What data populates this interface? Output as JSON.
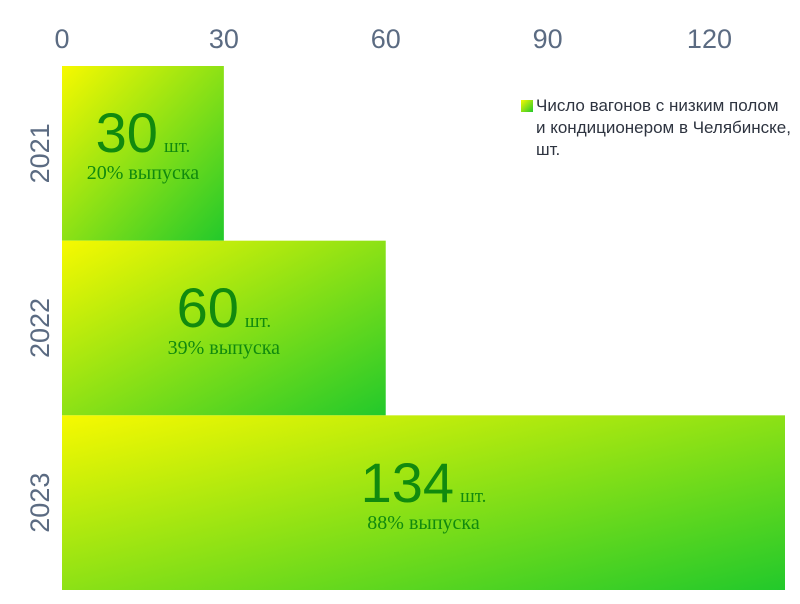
{
  "chart_data": {
    "type": "bar",
    "orientation": "horizontal",
    "categories": [
      "2021",
      "2022",
      "2023"
    ],
    "series": [
      {
        "name": "Число вагонов с низким полом и кондиционером в Челябинске, шт.",
        "values": [
          30,
          60,
          134
        ],
        "unit": "шт.",
        "shares": [
          "20% выпуска",
          "39% выпуска",
          "88% выпуска"
        ]
      }
    ],
    "xticks": [
      "0",
      "30",
      "60",
      "90",
      "120"
    ],
    "xtick_values": [
      0,
      30,
      60,
      90,
      120
    ],
    "xlim": [
      0,
      134
    ],
    "xaxis_position": "top",
    "legend_position": "top-right",
    "grid": false,
    "colors": {
      "gradient_start": "#f7f900",
      "gradient_end": "#22c92b",
      "label": "#118a0e",
      "axis_text": "#5b6b82"
    }
  }
}
